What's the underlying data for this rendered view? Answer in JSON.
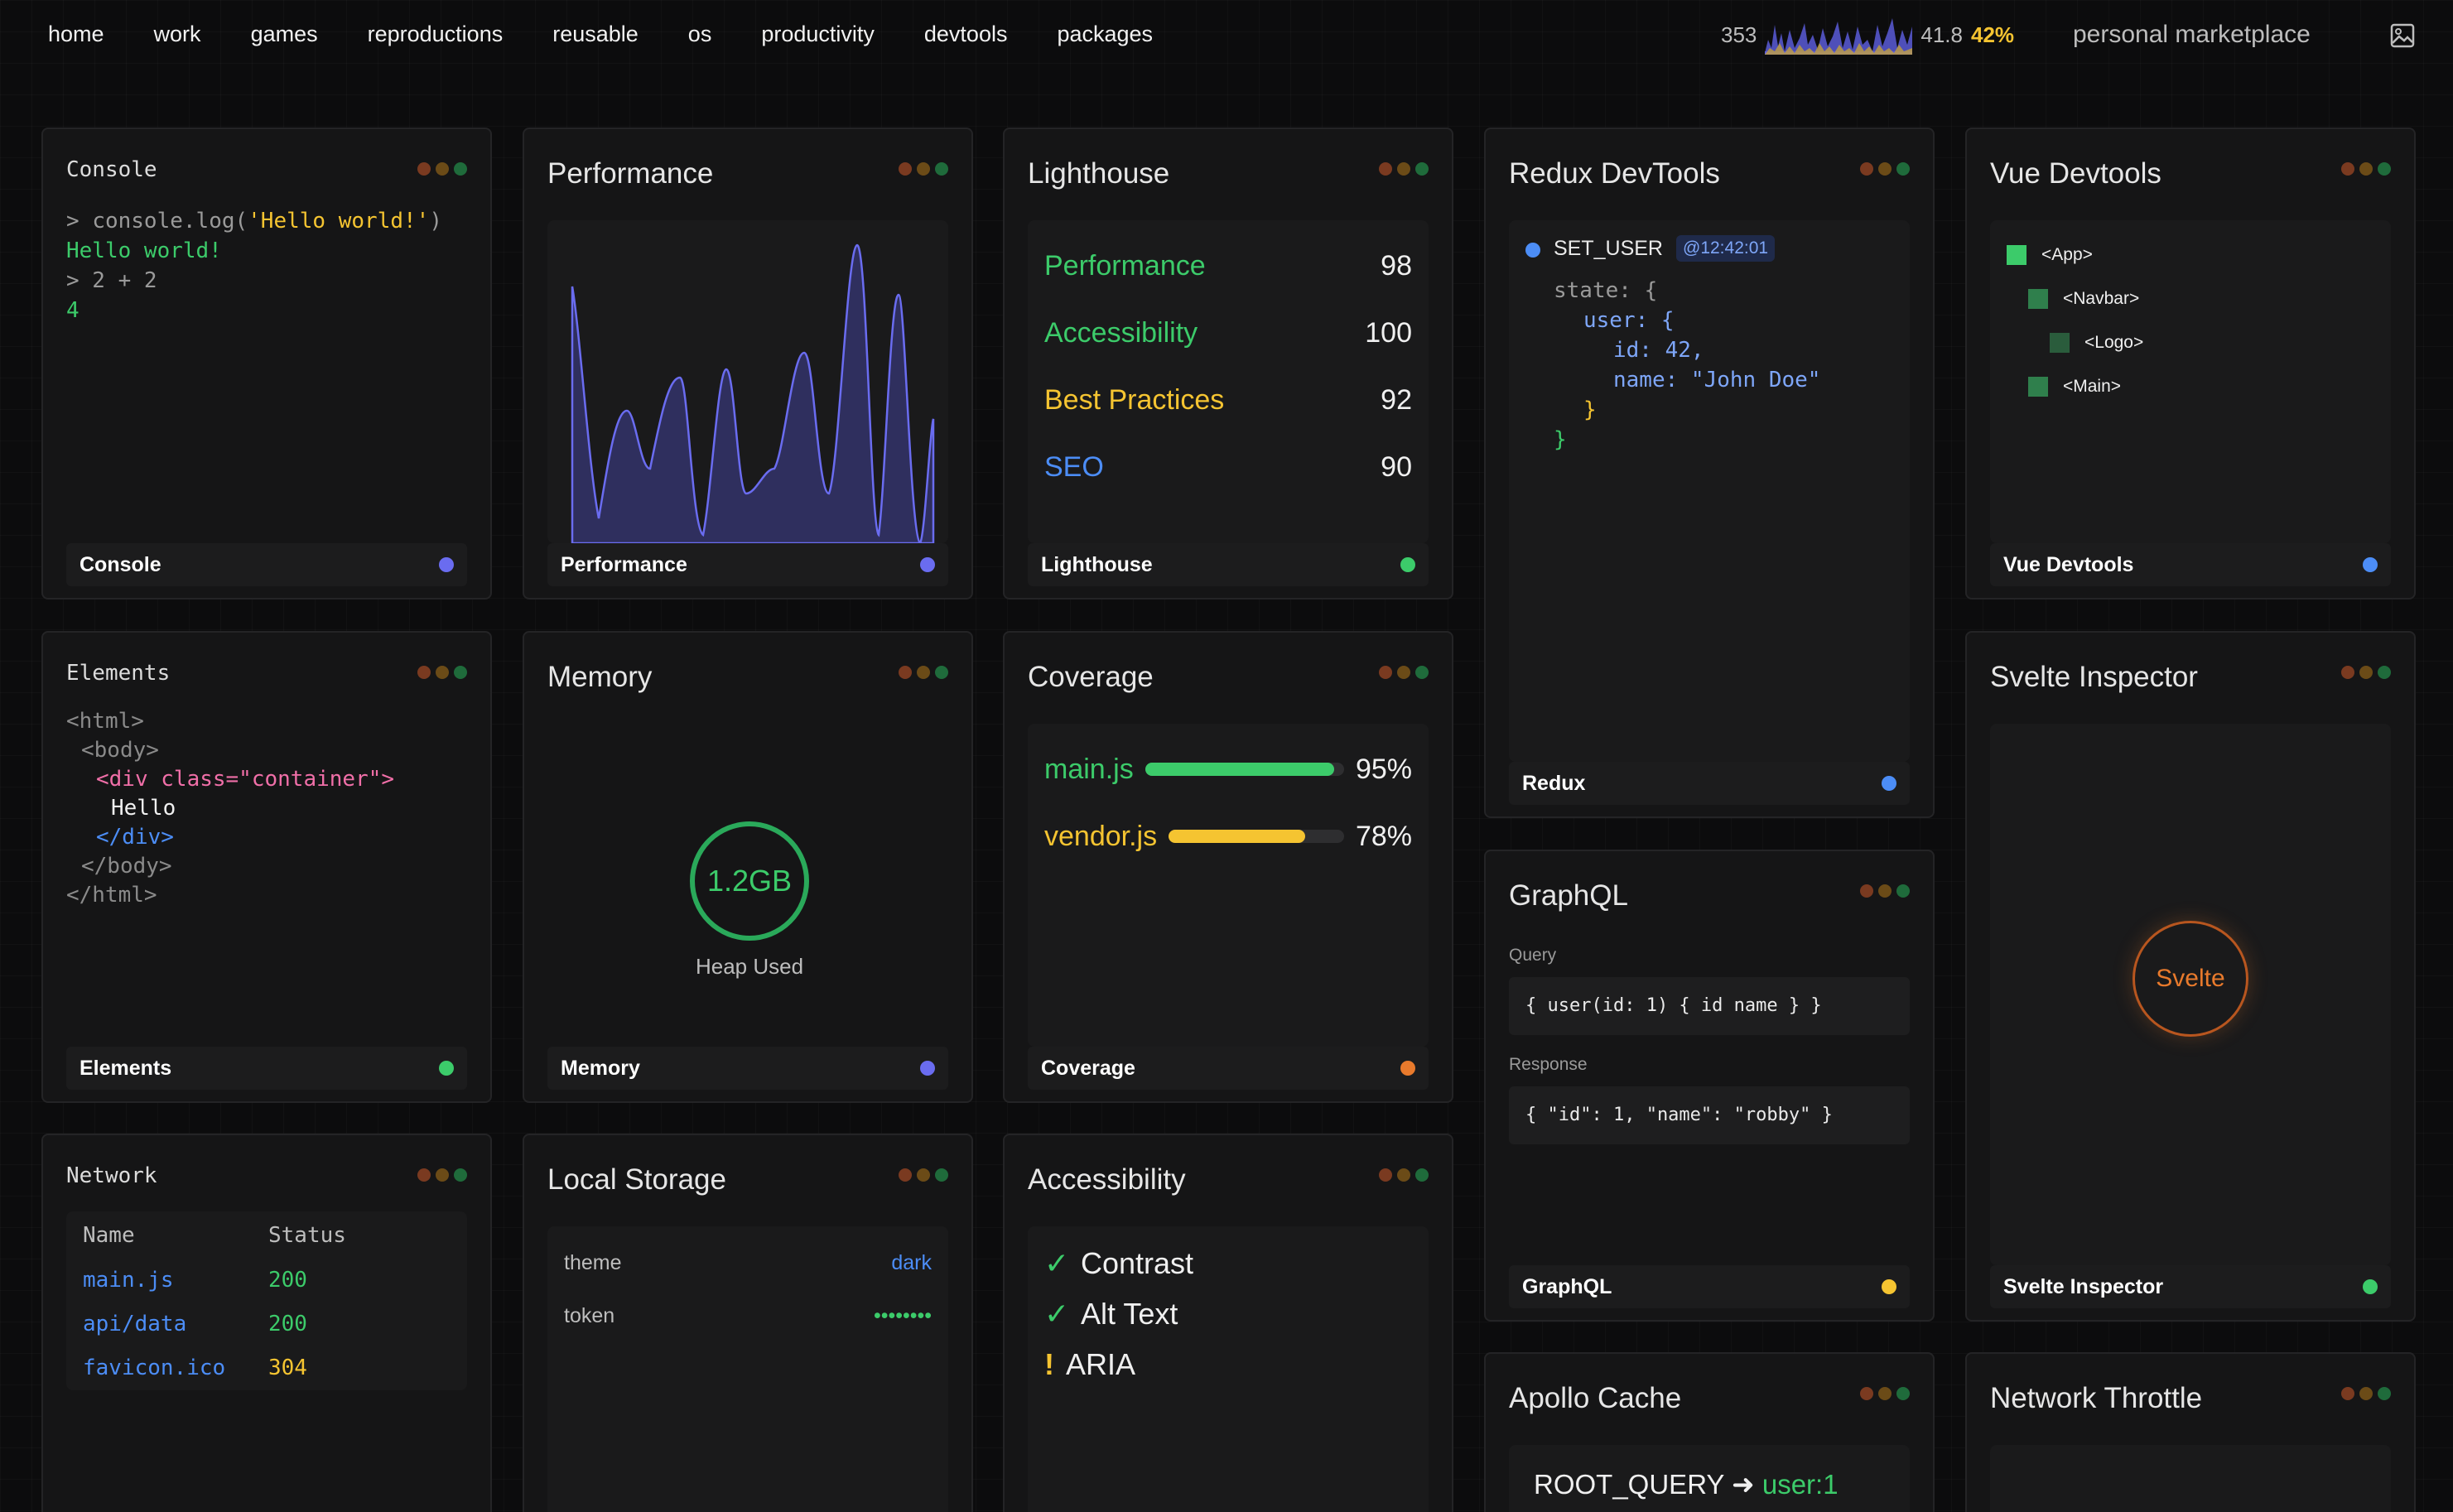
{
  "nav": {
    "links": [
      "home",
      "work",
      "games",
      "reproductions",
      "reusable",
      "os",
      "productivity",
      "devtools",
      "packages"
    ],
    "stat_count": "353",
    "stat_value": "41.8",
    "stat_percent": "42%",
    "marketplace": "personal marketplace",
    "image_icon": "image-icon"
  },
  "colors": {
    "accent_purple": "#6a6cf0",
    "green": "#3ccb6a",
    "yellow": "#f5c431",
    "blue": "#4c8df6",
    "orange": "#e87a2c",
    "pink": "#f06fa8"
  },
  "console": {
    "title": "Console",
    "lines": [
      {
        "prompt": ">",
        "cmd": "console.log(",
        "arg": "'Hello world!'",
        "close": ")"
      },
      {
        "text": "Hello world!"
      },
      {
        "text": "> 2 + 2"
      },
      {
        "text": "4"
      }
    ],
    "footer": "Console"
  },
  "performance": {
    "title": "Performance",
    "footer": "Performance"
  },
  "lighthouse": {
    "title": "Lighthouse",
    "rows": [
      {
        "name": "Performance",
        "score": "98",
        "color": "#3ccb6a"
      },
      {
        "name": "Accessibility",
        "score": "100",
        "color": "#3ccb6a"
      },
      {
        "name": "Best Practices",
        "score": "92",
        "color": "#f5c431"
      },
      {
        "name": "SEO",
        "score": "90",
        "color": "#4c8df6"
      }
    ],
    "footer": "Lighthouse"
  },
  "redux": {
    "title": "Redux DevTools",
    "action": "SET_USER",
    "time": "@12:42:01",
    "lines": [
      "state: {",
      "user: {",
      "id: 42,",
      "name: \"John Doe\"",
      "}",
      "}"
    ],
    "footer": "Redux"
  },
  "vue": {
    "title": "Vue Devtools",
    "tree": [
      "<App>",
      "<Navbar>",
      "<Logo>",
      "<Main>"
    ],
    "footer": "Vue Devtools"
  },
  "elements": {
    "title": "Elements",
    "lines": [
      "<html>",
      "<body>",
      "<div class=\"container\">",
      "Hello",
      "</div>",
      "</body>",
      "</html>"
    ],
    "footer": "Elements"
  },
  "memory": {
    "title": "Memory",
    "value": "1.2GB",
    "caption": "Heap Used",
    "footer": "Memory"
  },
  "coverage": {
    "title": "Coverage",
    "rows": [
      {
        "name": "main.js",
        "pct_label": "95%",
        "pct": 0.95,
        "color": "#3ccb6a"
      },
      {
        "name": "vendor.js",
        "pct_label": "78%",
        "pct": 0.78,
        "color": "#f5c431"
      }
    ],
    "footer": "Coverage"
  },
  "graphql": {
    "title": "GraphQL",
    "query_label": "Query",
    "query": "{ user(id: 1) { id name } }",
    "response_label": "Response",
    "response": "{ \"id\": 1, \"name\": \"robby\" }",
    "footer": "GraphQL"
  },
  "svelte": {
    "title": "Svelte Inspector",
    "badge": "Svelte",
    "footer": "Svelte Inspector"
  },
  "network": {
    "title": "Network",
    "headers": [
      "Name",
      "Status"
    ],
    "rows": [
      {
        "name": "main.js",
        "status": "200"
      },
      {
        "name": "api/data",
        "status": "200"
      },
      {
        "name": "favicon.ico",
        "status": "304"
      }
    ]
  },
  "storage": {
    "title": "Local Storage",
    "rows": [
      {
        "key": "theme",
        "value": "dark"
      },
      {
        "key": "token",
        "value": "••••••••"
      }
    ]
  },
  "accessibility": {
    "title": "Accessibility",
    "rows": [
      {
        "mark": "✓",
        "label": "Contrast"
      },
      {
        "mark": "✓",
        "label": "Alt Text"
      },
      {
        "mark": "!",
        "label": "ARIA"
      }
    ]
  },
  "apollo": {
    "title": "Apollo Cache",
    "root": "ROOT_QUERY",
    "arrow": "➜",
    "target": "user:1"
  },
  "throttle": {
    "title": "Network Throttle"
  }
}
